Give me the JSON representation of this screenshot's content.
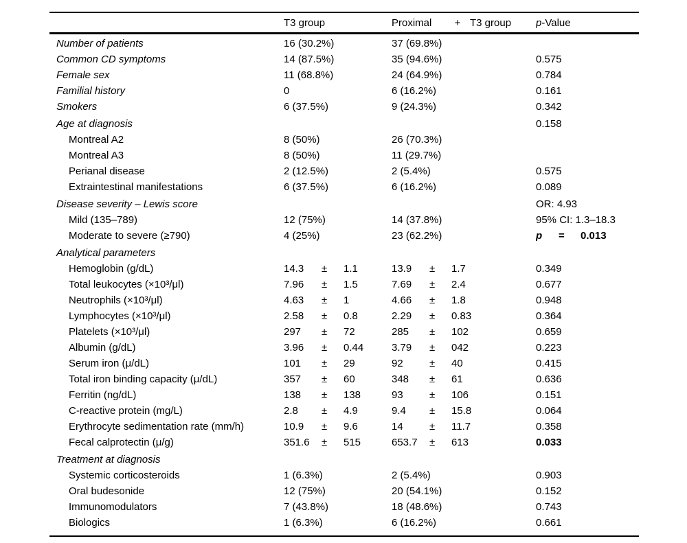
{
  "table": {
    "header": {
      "col1": "",
      "col2": "T3 group",
      "col3_part1": "Proximal",
      "col3_plus": "+",
      "col3_part2": "T3 group",
      "col4_p": "p",
      "col4_rest": "-Value"
    },
    "pm_symbol": "±",
    "rows": [
      {
        "label": "Number of patients",
        "italic": true,
        "t3": "16 (30.2%)",
        "prox": "37 (69.8%)",
        "p": ""
      },
      {
        "label": "Common CD symptoms",
        "italic": true,
        "t3": "14 (87.5%)",
        "prox": "35 (94.6%)",
        "p": "0.575"
      },
      {
        "label": "Female sex",
        "italic": true,
        "t3": "11 (68.8%)",
        "prox": "24 (64.9%)",
        "p": "0.784"
      },
      {
        "label": "Familial history",
        "italic": true,
        "t3": "0",
        "prox": "6 (16.2%)",
        "p": "0.161"
      },
      {
        "label": "Smokers",
        "italic": true,
        "t3": "6 (37.5%)",
        "prox": "9 (24.3%)",
        "p": "0.342"
      },
      {
        "label": "Age at diagnosis",
        "italic": true,
        "gap": true,
        "t3": "",
        "prox": "",
        "p": "0.158"
      },
      {
        "label": "Montreal A2",
        "indent": true,
        "t3": "8 (50%)",
        "prox": "26 (70.3%)",
        "p": ""
      },
      {
        "label": "Montreal A3",
        "indent": true,
        "t3": "8 (50%)",
        "prox": "11 (29.7%)",
        "p": ""
      },
      {
        "label": "Perianal disease",
        "indent": true,
        "t3": "2 (12.5%)",
        "prox": "2 (5.4%)",
        "p": "0.575"
      },
      {
        "label": "Extraintestinal manifestations",
        "indent": true,
        "t3": "6 (37.5%)",
        "prox": "6 (16.2%)",
        "p": "0.089"
      },
      {
        "label": "Disease severity – Lewis score",
        "italic": true,
        "gap": true,
        "t3": "",
        "prox": "",
        "p": "OR: 4.93"
      },
      {
        "label": "Mild (135–789)",
        "indent": true,
        "t3": "12 (75%)",
        "prox": "14 (37.8%)",
        "p": "95% CI: 1.3–18.3"
      },
      {
        "label": "Moderate to severe (≥790)",
        "indent": true,
        "t3": "4 (25%)",
        "prox": "23 (62.2%)",
        "pEq": {
          "p": "p",
          "eq": "=",
          "val": "0.013"
        }
      },
      {
        "label": "Analytical parameters",
        "italic": true,
        "gap": true,
        "t3": "",
        "prox": "",
        "p": ""
      },
      {
        "label": "Hemoglobin (g/dL)",
        "indent": true,
        "t3": {
          "mean": "14.3",
          "pm": "±",
          "sd": "1.1"
        },
        "prox": {
          "mean": "13.9",
          "pm": "±",
          "sd": "1.7"
        },
        "p": "0.349"
      },
      {
        "label": "Total leukocytes (×10³/μl)",
        "indent": true,
        "t3": {
          "mean": "7.96",
          "pm": "±",
          "sd": "1.5"
        },
        "prox": {
          "mean": "7.69",
          "pm": "±",
          "sd": "2.4"
        },
        "p": "0.677"
      },
      {
        "label": "Neutrophils (×10³/μl)",
        "indent": true,
        "t3": {
          "mean": "4.63",
          "pm": "±",
          "sd": "1"
        },
        "prox": {
          "mean": "4.66",
          "pm": "±",
          "sd": "1.8"
        },
        "p": "0.948"
      },
      {
        "label": "Lymphocytes (×10³/μl)",
        "indent": true,
        "t3": {
          "mean": "2.58",
          "pm": "±",
          "sd": "0.8"
        },
        "prox": {
          "mean": "2.29",
          "pm": "±",
          "sd": "0.83"
        },
        "p": "0.364"
      },
      {
        "label": "Platelets (×10³/μl)",
        "indent": true,
        "t3": {
          "mean": "297",
          "pm": "±",
          "sd": "72"
        },
        "prox": {
          "mean": "285",
          "pm": "±",
          "sd": "102"
        },
        "p": "0.659"
      },
      {
        "label": "Albumin (g/dL)",
        "indent": true,
        "t3": {
          "mean": "3.96",
          "pm": "±",
          "sd": "0.44"
        },
        "prox": {
          "mean": "3.79",
          "pm": "±",
          "sd": "042"
        },
        "p": "0.223"
      },
      {
        "label": "Serum iron (μ/dL)",
        "indent": true,
        "t3": {
          "mean": "101",
          "pm": "±",
          "sd": "29"
        },
        "prox": {
          "mean": "92",
          "pm": "±",
          "sd": "40"
        },
        "p": "0.415"
      },
      {
        "label": "Total iron binding capacity (μ/dL)",
        "indent": true,
        "t3": {
          "mean": "357",
          "pm": "±",
          "sd": "60"
        },
        "prox": {
          "mean": "348",
          "pm": "±",
          "sd": "61"
        },
        "p": "0.636"
      },
      {
        "label": "Ferritin (ng/dL)",
        "indent": true,
        "t3": {
          "mean": "138",
          "pm": "±",
          "sd": "138"
        },
        "prox": {
          "mean": "93",
          "pm": "±",
          "sd": "106"
        },
        "p": "0.151"
      },
      {
        "label": "C-reactive protein (mg/L)",
        "indent": true,
        "t3": {
          "mean": "2.8",
          "pm": "±",
          "sd": "4.9"
        },
        "prox": {
          "mean": "9.4",
          "pm": "±",
          "sd": "15.8"
        },
        "p": "0.064"
      },
      {
        "label": "Erythrocyte sedimentation rate (mm/h)",
        "indent": true,
        "t3": {
          "mean": "10.9",
          "pm": "±",
          "sd": "9.6"
        },
        "prox": {
          "mean": "14",
          "pm": "±",
          "sd": "11.7"
        },
        "p": "0.358"
      },
      {
        "label": "Fecal calprotectin (μ/g)",
        "indent": true,
        "t3": {
          "mean": "351.6",
          "pm": "±",
          "sd": "515"
        },
        "prox": {
          "mean": "653.7",
          "pm": "±",
          "sd": "613"
        },
        "p": "0.033",
        "pBold": true
      },
      {
        "label": "Treatment at diagnosis",
        "italic": true,
        "gap": true,
        "t3": "",
        "prox": "",
        "p": ""
      },
      {
        "label": "Systemic corticosteroids",
        "indent": true,
        "t3": "1 (6.3%)",
        "prox": "2 (5.4%)",
        "p": "0.903"
      },
      {
        "label": "Oral budesonide",
        "indent": true,
        "t3": "12 (75%)",
        "prox": "20 (54.1%)",
        "p": "0.152"
      },
      {
        "label": "Immunomodulators",
        "indent": true,
        "t3": "7 (43.8%)",
        "prox": "18 (48.6%)",
        "p": "0.743"
      },
      {
        "label": "Biologics",
        "indent": true,
        "t3": "1 (6.3%)",
        "prox": "6 (16.2%)",
        "p": "0.661"
      }
    ]
  }
}
